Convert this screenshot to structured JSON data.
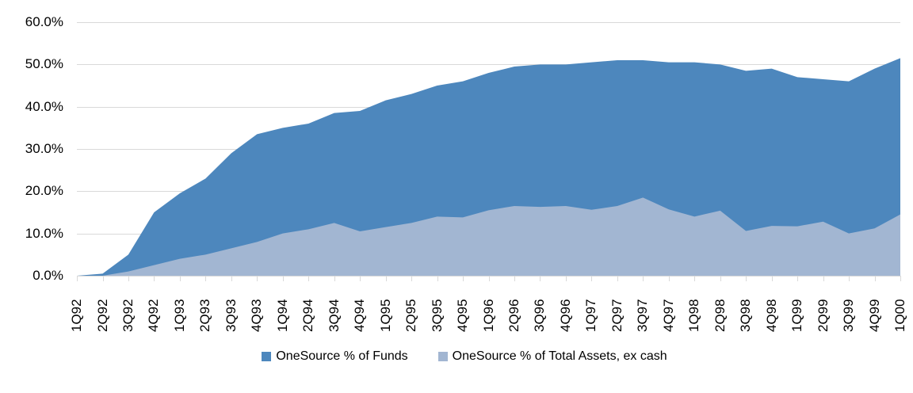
{
  "chart_data": {
    "type": "area",
    "stacked": false,
    "categories": [
      "1Q92",
      "2Q92",
      "3Q92",
      "4Q92",
      "1Q93",
      "2Q93",
      "3Q93",
      "4Q93",
      "1Q94",
      "2Q94",
      "3Q94",
      "4Q94",
      "1Q95",
      "2Q95",
      "3Q95",
      "4Q95",
      "1Q96",
      "2Q96",
      "3Q96",
      "4Q96",
      "1Q97",
      "2Q97",
      "3Q97",
      "4Q97",
      "1Q98",
      "2Q98",
      "3Q98",
      "4Q98",
      "1Q99",
      "2Q99",
      "3Q99",
      "4Q99",
      "1Q00"
    ],
    "series": [
      {
        "name": "OneSource % of Funds",
        "color": "#4d87bd",
        "values": [
          0,
          0.5,
          5,
          15,
          19.5,
          23,
          29,
          33.5,
          35,
          36,
          38.5,
          39,
          41.5,
          43,
          45,
          46,
          48,
          49.5,
          50,
          50,
          50.5,
          51,
          51,
          50.5,
          50.5,
          50,
          48.5,
          49,
          47,
          46.5,
          46,
          49,
          51.5
        ]
      },
      {
        "name": "OneSource % of Total Assets, ex cash",
        "color": "#a2b6d2",
        "values": [
          0,
          0,
          1,
          2.5,
          4,
          5,
          6.5,
          8,
          10,
          11,
          12.5,
          10.5,
          11.5,
          12.5,
          14,
          13.8,
          15.5,
          16.5,
          16.3,
          16.5,
          15.6,
          16.5,
          18.5,
          15.7,
          14,
          15.4,
          10.6,
          11.8,
          11.7,
          12.8,
          10,
          11.2,
          14.5
        ]
      }
    ],
    "title": "",
    "xlabel": "",
    "ylabel": "",
    "ylim": [
      0,
      60
    ],
    "ytick_step": 10,
    "ytick_labels": [
      "0.0%",
      "10.0%",
      "20.0%",
      "30.0%",
      "40.0%",
      "50.0%",
      "60.0%"
    ],
    "grid": "horizontal",
    "legend_position": "bottom"
  },
  "colors": {
    "gridline": "#d9d9d9",
    "axis": "#d9d9d9",
    "text": "#000000",
    "background": "#ffffff"
  }
}
